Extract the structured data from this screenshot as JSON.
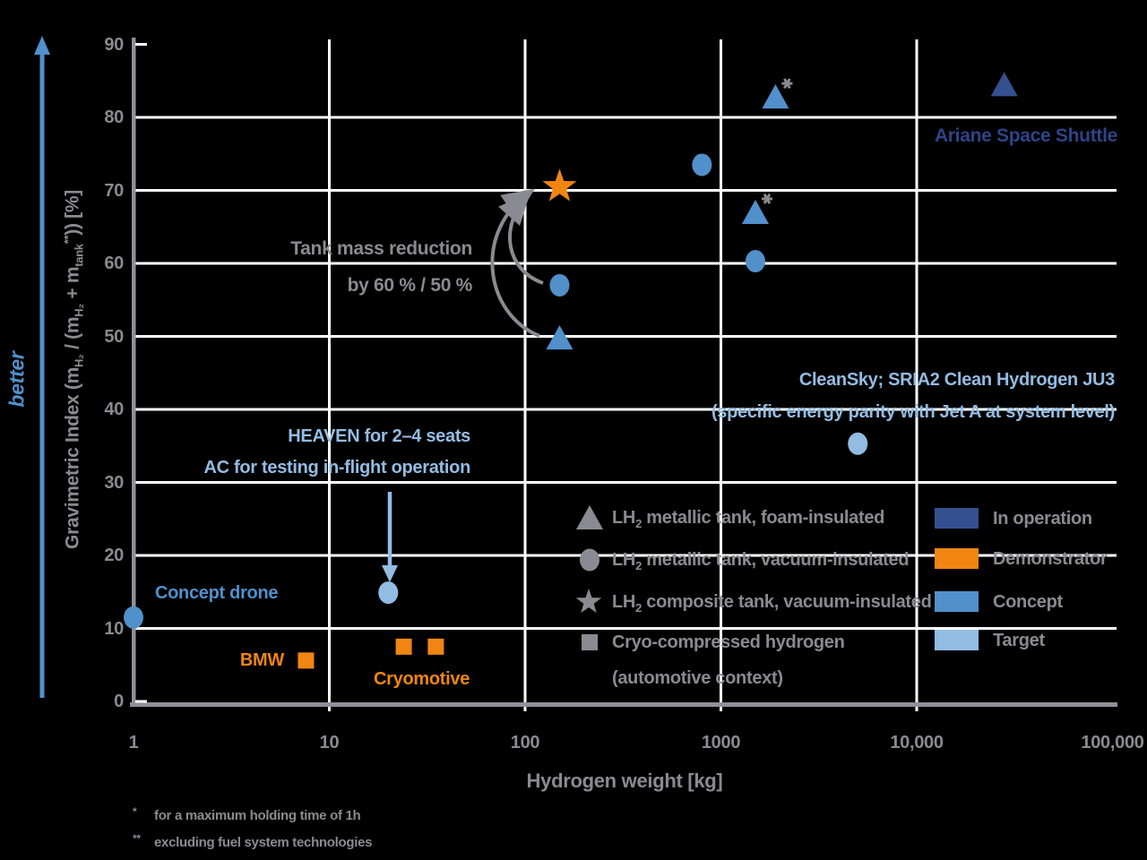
{
  "colors": {
    "in_operation": "#35508F",
    "demonstrator": "#F08511",
    "concept": "#5190CB",
    "target": "#93BCE3",
    "text_gray": "#8A8A92",
    "axis_gray": "#90909A",
    "gridline": "#FFFFFF",
    "dark_blue_text": "#2E4487",
    "background": "#000000"
  },
  "y_axis": {
    "title_parts": [
      "Gravimetric Index (m",
      "H₂",
      " / (m",
      "H₂",
      " + m",
      "tank",
      "**",
      ")) [%]"
    ],
    "better_label": "better",
    "ticks": [
      {
        "value": 0,
        "label": "0"
      },
      {
        "value": 10,
        "label": "10"
      },
      {
        "value": 20,
        "label": "20"
      },
      {
        "value": 30,
        "label": "30"
      },
      {
        "value": 40,
        "label": "40"
      },
      {
        "value": 50,
        "label": "50"
      },
      {
        "value": 60,
        "label": "60"
      },
      {
        "value": 70,
        "label": "70"
      },
      {
        "value": 80,
        "label": "80"
      },
      {
        "value": 90,
        "label": "90"
      }
    ]
  },
  "x_axis": {
    "title": "Hydrogen weight [kg]",
    "ticks": [
      {
        "value": 1,
        "label": "1"
      },
      {
        "value": 10,
        "label": "10"
      },
      {
        "value": 100,
        "label": "100"
      },
      {
        "value": 1000,
        "label": "1000"
      },
      {
        "value": 10000,
        "label": "10,000"
      },
      {
        "value": 100000,
        "label": "100,000"
      }
    ]
  },
  "axes_grid": {
    "y_gridlines": [
      10,
      20,
      30,
      40,
      50,
      60,
      70,
      80
    ],
    "x_gridlines": [
      10,
      100,
      1000,
      10000
    ]
  },
  "chart_data": {
    "type": "scatter",
    "title": "",
    "xlabel": "Hydrogen weight [kg]",
    "ylabel": "Gravimetric Index (mH2 / (mH2 + mtank**)) [%]",
    "x_scale": "log",
    "xlim": [
      1,
      100000
    ],
    "ylim": [
      0,
      90
    ],
    "grid": true,
    "series": [
      {
        "name": "In operation",
        "color": "#35508F",
        "points": [
          {
            "x": 28000,
            "y": 84.5,
            "shape": "triangle",
            "label": "Ariane Space Shuttle"
          }
        ]
      },
      {
        "name": "Demonstrator",
        "color": "#F08511",
        "points": [
          {
            "x": 150,
            "y": 70.5,
            "shape": "star",
            "label": "LH2 composite tank, vacuum-insulated demonstrator"
          },
          {
            "x": 7.6,
            "y": 5.6,
            "shape": "square",
            "label": "BMW"
          },
          {
            "x": 24,
            "y": 7.5,
            "shape": "square",
            "label": "Cryomotive"
          },
          {
            "x": 35,
            "y": 7.5,
            "shape": "square",
            "label": "Cryomotive"
          }
        ]
      },
      {
        "name": "Concept",
        "color": "#5190CB",
        "points": [
          {
            "x": 1900,
            "y": 82.8,
            "shape": "triangle",
            "footnote": "*"
          },
          {
            "x": 800,
            "y": 73.5,
            "shape": "circle"
          },
          {
            "x": 1500,
            "y": 67,
            "shape": "triangle",
            "footnote": "*"
          },
          {
            "x": 1500,
            "y": 60.3,
            "shape": "circle"
          },
          {
            "x": 150,
            "y": 57,
            "shape": "circle"
          },
          {
            "x": 150,
            "y": 49.8,
            "shape": "triangle"
          },
          {
            "x": 1,
            "y": 11.5,
            "shape": "circle",
            "label": "Concept drone"
          }
        ]
      },
      {
        "name": "Target",
        "color": "#93BCE3",
        "points": [
          {
            "x": 5000,
            "y": 35.3,
            "shape": "circle",
            "label": "CleanSky; SRIA2 Clean Hydrogen JU3"
          },
          {
            "x": 20,
            "y": 14.9,
            "shape": "circle",
            "label": "HEAVEN"
          }
        ]
      }
    ]
  },
  "annotations": {
    "ariane": "Ariane Space Shuttle",
    "cleansky_line1": "CleanSky; SRIA2 Clean Hydrogen JU3",
    "cleansky_line2": "(specific energy parity with Jet A at system level)",
    "heaven_line1": "HEAVEN for 2–4 seats",
    "heaven_line2": "AC for testing in-flight operation",
    "tankmass_line1": "Tank mass reduction",
    "tankmass_line2": "by 60 % / 50 %",
    "concept_drone": "Concept drone",
    "bmw": "BMW",
    "cryomotive": "Cryomotive"
  },
  "shape_legend": [
    {
      "pre": "LH",
      "sub": "2",
      "rest": " metallic tank, foam-insulated",
      "symbol": "triangle"
    },
    {
      "pre": "LH",
      "sub": "2",
      "rest": " metallic tank, vacuum-insulated",
      "symbol": "circle"
    },
    {
      "pre": "LH",
      "sub": "2",
      "rest": " composite tank, vacuum-insulated",
      "symbol": "star"
    },
    {
      "pre": "Cryo-compressed hydrogen",
      "sub": "",
      "rest": "",
      "line2": "(automotive context)",
      "symbol": "square"
    }
  ],
  "status_legend": [
    {
      "label": "In operation",
      "color": "#35508F"
    },
    {
      "label": "Demonstrator",
      "color": "#F08511"
    },
    {
      "label": "Concept",
      "color": "#5190CB"
    },
    {
      "label": "Target",
      "color": "#93BCE3"
    }
  ],
  "footnotes": [
    {
      "mark": "*",
      "text": "for a maximum holding time of 1h"
    },
    {
      "mark": "**",
      "text": "excluding fuel system technologies"
    }
  ]
}
